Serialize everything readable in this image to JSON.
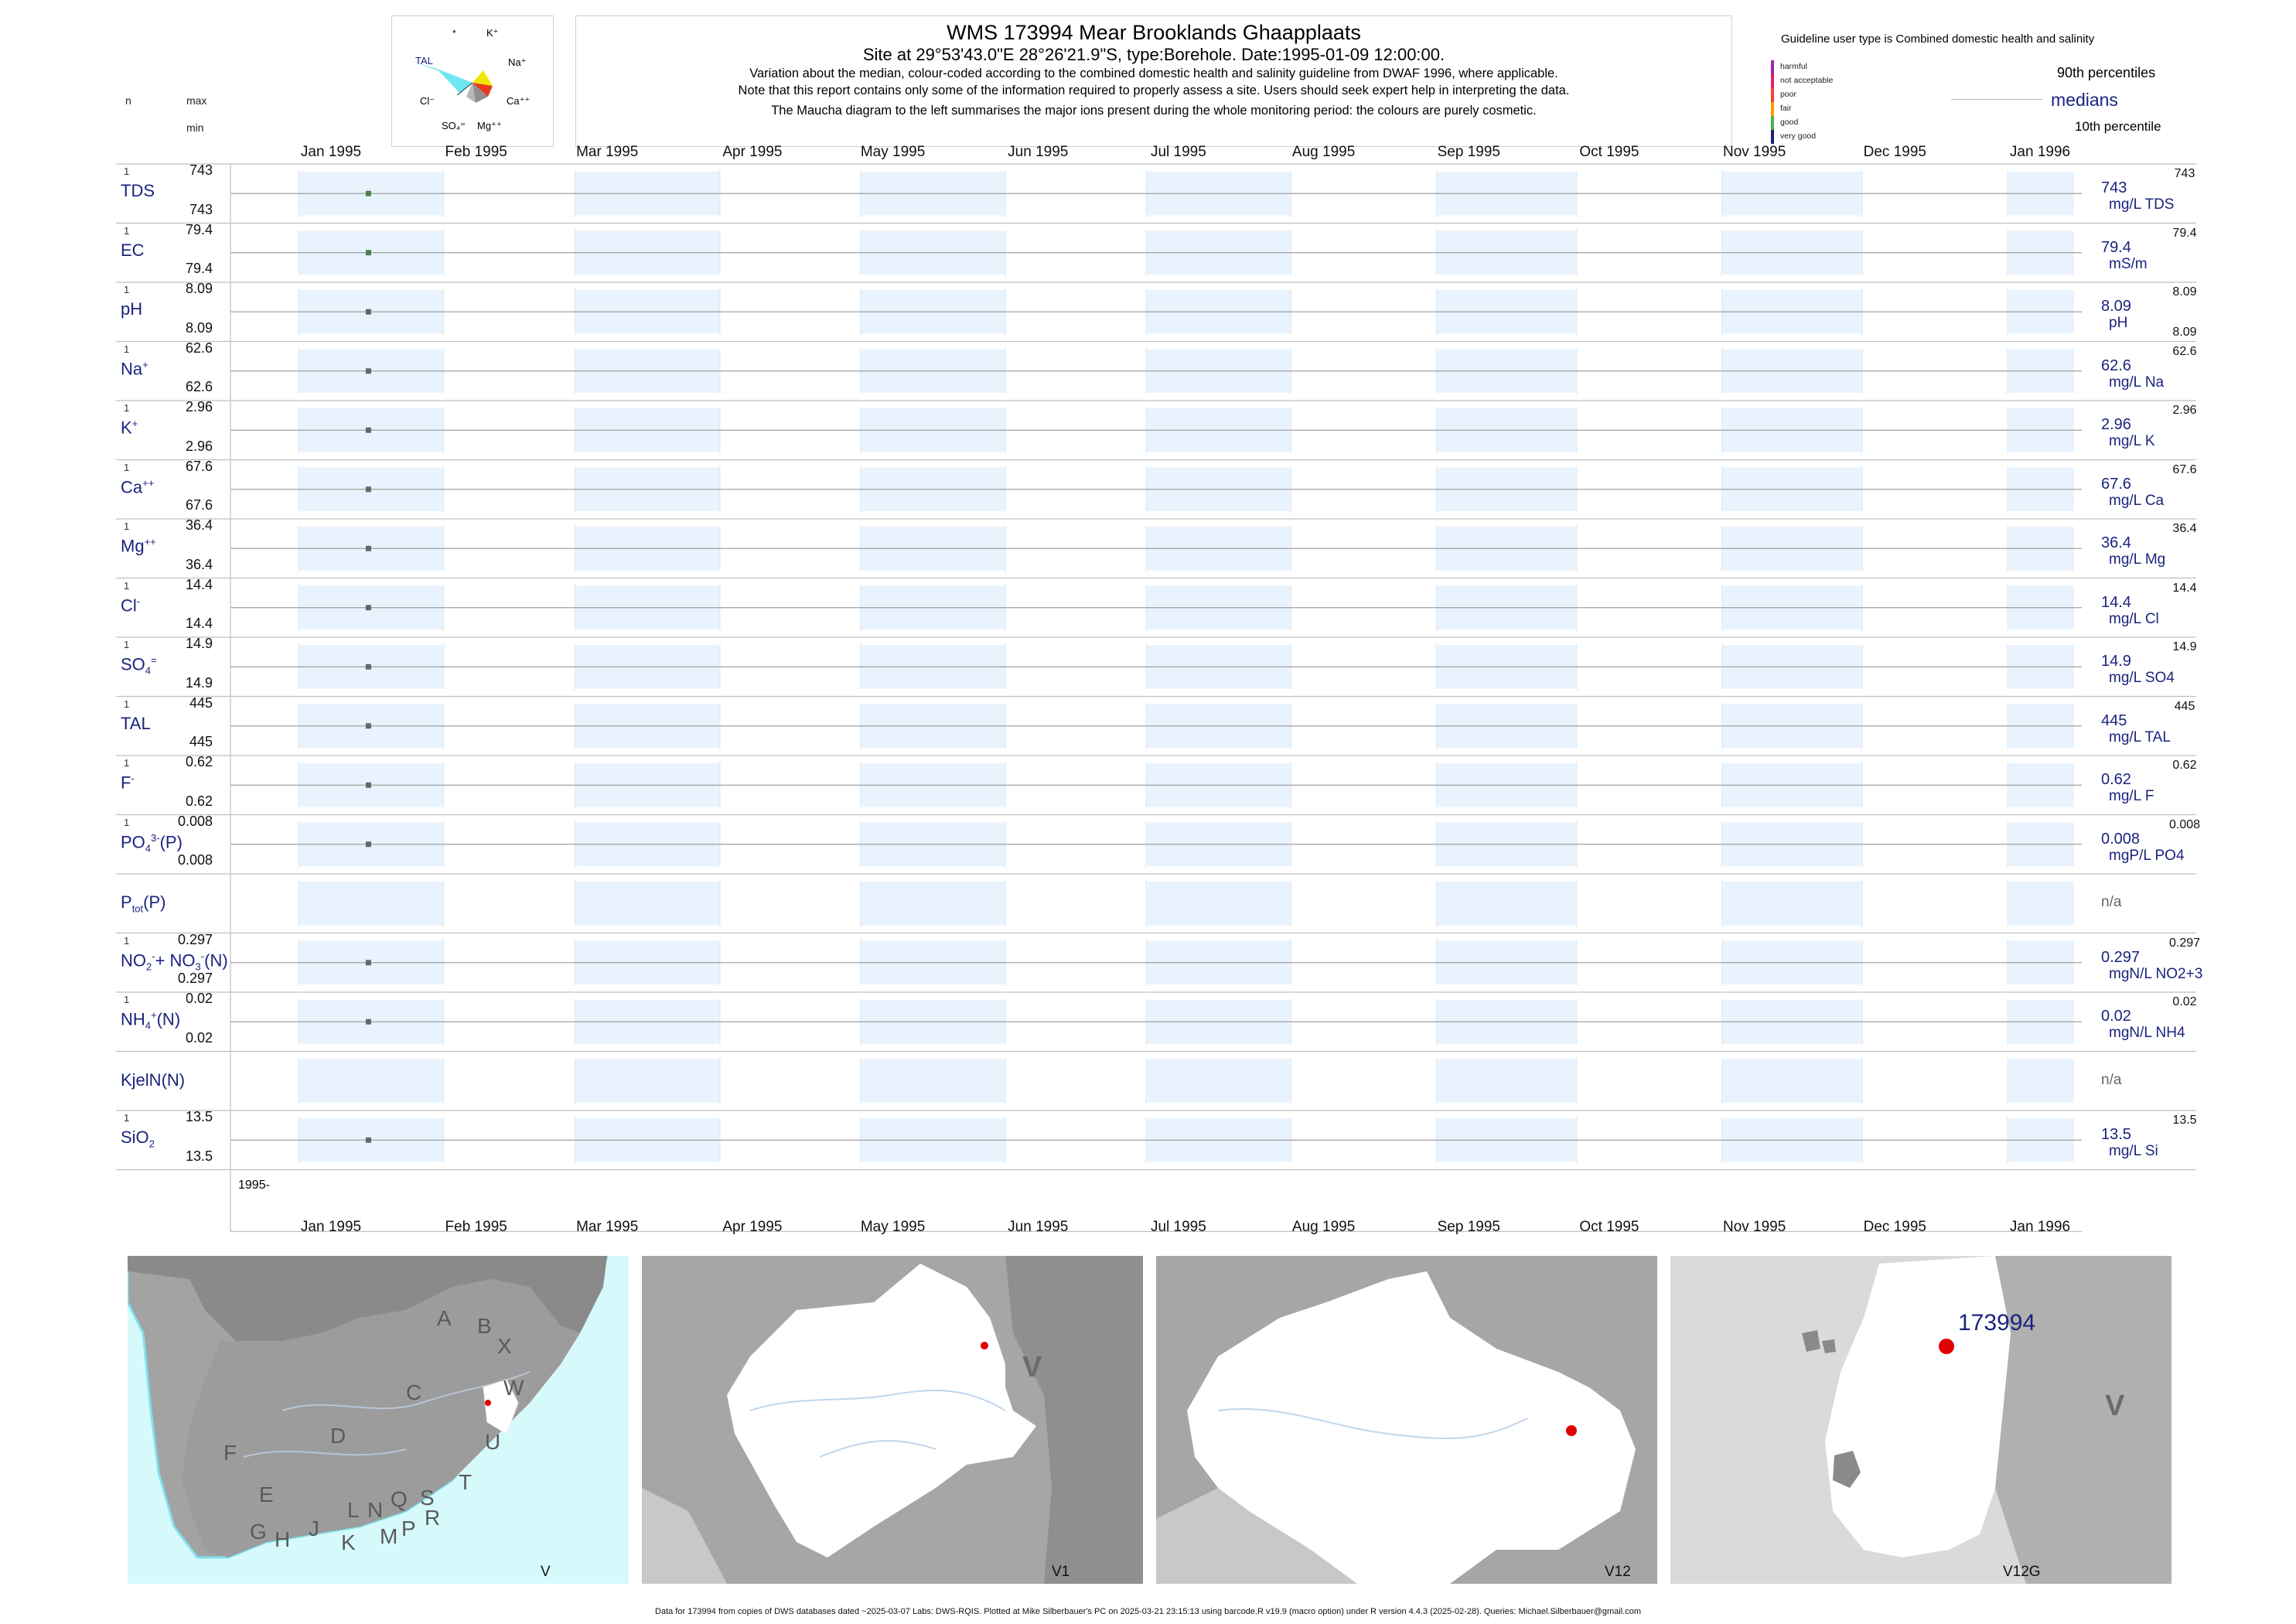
{
  "header": {
    "title": "WMS 173994  Mear Brooklands Ghaapplaats",
    "subtitle": "Site at 29°53'43.0\"E 28°26'21.9\"S, type:Borehole. Date:1995-01-09 12:00:00.",
    "note1": "Variation about the median,  colour-coded according to the combined domestic health and salinity guideline from DWAF 1996, where applicable.",
    "note2": "Note that this report contains only some of the information required to properly assess a site. Users should seek expert help in interpreting the data.",
    "note3": "The Maucha diagram to the left summarises the major ions present during the whole monitoring period: the colours are purely cosmetic.",
    "col_n": "n",
    "col_max": "max",
    "col_min": "min"
  },
  "maucha": {
    "labels": [
      "*",
      "K⁺",
      "TAL",
      "Na⁺",
      "Cl⁻",
      "Ca⁺⁺",
      "SO₄⁼",
      "Mg⁺⁺"
    ],
    "colors": {
      "tal": "#6ee7f0",
      "na": "#f2e600",
      "ca": "#e8391d",
      "so4": "#a8a8a8",
      "mg": "#8f8f8f"
    }
  },
  "guideline": {
    "heading": "Guideline user type is Combined domestic health and salinity",
    "items": [
      {
        "label": "harmful",
        "color": "#9c27b0"
      },
      {
        "label": "not acceptable",
        "color": "#e91e63"
      },
      {
        "label": "poor",
        "color": "#f44336"
      },
      {
        "label": "fair",
        "color": "#ff9800"
      },
      {
        "label": "good",
        "color": "#4caf50"
      },
      {
        "label": "very good",
        "color": "#1a237e"
      }
    ],
    "p90": "90th percentiles",
    "medians": "medians",
    "p10": "10th percentile"
  },
  "chart_data": {
    "type": "scatter",
    "x_months": [
      "Jan 1995",
      "Feb 1995",
      "Mar 1995",
      "Apr 1995",
      "May 1995",
      "Jun 1995",
      "Jul 1995",
      "Aug 1995",
      "Sep 1995",
      "Oct 1995",
      "Nov 1995",
      "Dec 1995",
      "Jan 1996"
    ],
    "x_range": [
      "1995-01-01",
      "1996-01-01"
    ],
    "sample_date": "1995-01-09",
    "x_footer_label": "1995-",
    "series": [
      {
        "name": "TDS",
        "n": "1",
        "max": "743",
        "min": "743",
        "value": 743,
        "median": "743",
        "unit": "mg/L TDS",
        "rmax": "743",
        "rmin": "",
        "dot": "#4f7f4f"
      },
      {
        "name": "EC",
        "n": "1",
        "max": "79.4",
        "min": "79.4",
        "value": 79.4,
        "median": "79.4",
        "unit": "mS/m",
        "rmax": "79.4",
        "rmin": "",
        "dot": "#4f7f4f"
      },
      {
        "name": "pH",
        "n": "1",
        "max": "8.09",
        "min": "8.09",
        "value": 8.09,
        "median": "8.09",
        "unit": "pH",
        "rmax": "8.09",
        "rmin": "8.09",
        "dot": "#666666"
      },
      {
        "name": "Na+",
        "n": "1",
        "max": "62.6",
        "min": "62.6",
        "value": 62.6,
        "median": "62.6",
        "unit": "mg/L Na",
        "rmax": "62.6",
        "rmin": "",
        "dot": "#666666"
      },
      {
        "name": "K+",
        "n": "1",
        "max": "2.96",
        "min": "2.96",
        "value": 2.96,
        "median": "2.96",
        "unit": "mg/L K",
        "rmax": "2.96",
        "rmin": "",
        "dot": "#666666"
      },
      {
        "name": "Ca++",
        "n": "1",
        "max": "67.6",
        "min": "67.6",
        "value": 67.6,
        "median": "67.6",
        "unit": "mg/L Ca",
        "rmax": "67.6",
        "rmin": "",
        "dot": "#666666"
      },
      {
        "name": "Mg++",
        "n": "1",
        "max": "36.4",
        "min": "36.4",
        "value": 36.4,
        "median": "36.4",
        "unit": "mg/L Mg",
        "rmax": "36.4",
        "rmin": "",
        "dot": "#666666"
      },
      {
        "name": "Cl-",
        "n": "1",
        "max": "14.4",
        "min": "14.4",
        "value": 14.4,
        "median": "14.4",
        "unit": "mg/L Cl",
        "rmax": "14.4",
        "rmin": "",
        "dot": "#666666"
      },
      {
        "name": "SO4=",
        "n": "1",
        "max": "14.9",
        "min": "14.9",
        "value": 14.9,
        "median": "14.9",
        "unit": "mg/L SO4",
        "rmax": "14.9",
        "rmin": "",
        "dot": "#666666"
      },
      {
        "name": "TAL",
        "n": "1",
        "max": "445",
        "min": "445",
        "value": 445,
        "median": "445",
        "unit": "mg/L TAL",
        "rmax": "445",
        "rmin": "",
        "dot": "#666666"
      },
      {
        "name": "F-",
        "n": "1",
        "max": "0.62",
        "min": "0.62",
        "value": 0.62,
        "median": "0.62",
        "unit": "mg/L F",
        "rmax": "0.62",
        "rmin": "",
        "dot": "#666666"
      },
      {
        "name": "PO43-(P)",
        "n": "1",
        "max": "0.008",
        "min": "0.008",
        "value": 0.008,
        "median": "0.008",
        "unit": "mgP/L PO4",
        "rmax": "0.008",
        "rmin": "",
        "dot": "#666666"
      },
      {
        "name": "Ptot(P)",
        "n": "",
        "max": "",
        "min": "",
        "value": null,
        "median": "n/a",
        "unit": "",
        "rmax": "",
        "rmin": "",
        "dot": ""
      },
      {
        "name": "NO2+NO3(N)",
        "n": "1",
        "max": "0.297",
        "min": "0.297",
        "value": 0.297,
        "median": "0.297",
        "unit": "mgN/L NO2+3",
        "rmax": "0.297",
        "rmin": "",
        "dot": "#666666"
      },
      {
        "name": "NH4+(N)",
        "n": "1",
        "max": "0.02",
        "min": "0.02",
        "value": 0.02,
        "median": "0.02",
        "unit": "mgN/L NH4",
        "rmax": "0.02",
        "rmin": "",
        "dot": "#666666"
      },
      {
        "name": "KjelN(N)",
        "n": "",
        "max": "",
        "min": "",
        "value": null,
        "median": "n/a",
        "unit": "",
        "rmax": "",
        "rmin": "",
        "dot": ""
      },
      {
        "name": "SiO2",
        "n": "1",
        "max": "13.5",
        "min": "13.5",
        "value": 13.5,
        "median": "13.5",
        "unit": "mg/L Si",
        "rmax": "13.5",
        "rmin": "",
        "dot": "#666666"
      }
    ]
  },
  "maps": {
    "m1": {
      "label": "V",
      "regions": [
        "A",
        "B",
        "X",
        "C",
        "W",
        "D",
        "U",
        "F",
        "T",
        "E",
        "S",
        "Q",
        "L",
        "N",
        "R",
        "G",
        "H",
        "J",
        "K",
        "M",
        "P",
        "V"
      ]
    },
    "m2": {
      "label": "V1",
      "region": "V"
    },
    "m3": {
      "label": "V12"
    },
    "m4": {
      "label": "V12G",
      "site": "173994",
      "region": "V"
    }
  },
  "footer": "Data for 173994 from copies of DWS databases dated ~2025-03-07 Labs: DWS-RQIS. Plotted at Mike Silberbauer's PC on 2025-03-21 23:15:13 using barcode.R v19.9 (macro option) under R version 4.4.3 (2025-02-28). Queries: Michael.Silberbauer@gmail.com"
}
